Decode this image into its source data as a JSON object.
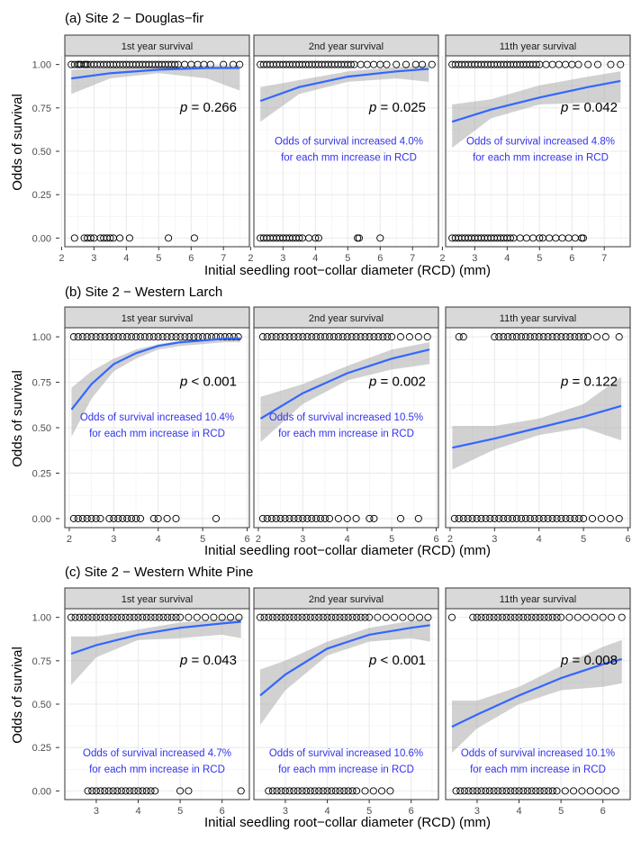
{
  "figure": {
    "ylabel": "Odds of survival",
    "xlabel": "Initial seedling root−collar diameter (RCD) (mm)",
    "y_ticks": [
      "0.00",
      "0.25",
      "0.50",
      "0.75",
      "1.00"
    ]
  },
  "chart_data": [
    {
      "type": "scatter",
      "title": "(a) Site 2 − Douglas−fir",
      "xlabel": "Initial seedling root−collar diameter (RCD) (mm)",
      "ylabel": "Odds of survival",
      "xlim": [
        2.1,
        7.8
      ],
      "ylim": [
        -0.05,
        1.05
      ],
      "x_ticks": [
        2,
        3,
        4,
        5,
        6,
        7
      ],
      "grid": true,
      "panels": [
        {
          "strip": "1st year survival",
          "p_value": "= 0.266",
          "annotation": [],
          "fit_x": [
            2.3,
            3.5,
            5.0,
            6.5,
            7.5
          ],
          "fit_y": [
            0.92,
            0.95,
            0.97,
            0.98,
            0.98
          ],
          "ci_lower": [
            0.83,
            0.92,
            0.95,
            0.92,
            0.85
          ],
          "ci_upper": [
            0.97,
            0.98,
            0.99,
            0.995,
            0.995
          ],
          "points_survived": [
            2.3,
            2.4,
            2.5,
            2.55,
            2.6,
            2.7,
            2.75,
            2.8,
            2.9,
            3.0,
            3.1,
            3.2,
            3.3,
            3.4,
            3.5,
            3.6,
            3.7,
            3.8,
            3.9,
            4.0,
            4.1,
            4.2,
            4.3,
            4.4,
            4.5,
            4.6,
            4.7,
            4.8,
            4.9,
            5.0,
            5.1,
            5.2,
            5.3,
            5.4,
            5.5,
            5.6,
            5.8,
            6.0,
            6.2,
            6.4,
            6.6,
            7.0,
            7.3,
            7.5
          ],
          "points_died": [
            2.4,
            2.7,
            2.8,
            2.9,
            3.0,
            3.2,
            3.3,
            3.4,
            3.5,
            3.6,
            3.8,
            4.1,
            5.3,
            6.1
          ]
        },
        {
          "strip": "2nd year survival",
          "p_value": "= 0.025",
          "annotation": [
            "Odds of survival increased 4.0%",
            "for each mm increase in RCD"
          ],
          "fit_x": [
            2.3,
            3.5,
            5.0,
            6.5,
            7.5
          ],
          "fit_y": [
            0.79,
            0.87,
            0.93,
            0.96,
            0.975
          ],
          "ci_lower": [
            0.67,
            0.83,
            0.9,
            0.92,
            0.9
          ],
          "ci_upper": [
            0.87,
            0.91,
            0.96,
            0.985,
            0.995
          ],
          "points_survived": [
            2.3,
            2.4,
            2.5,
            2.6,
            2.7,
            2.8,
            2.9,
            3.0,
            3.1,
            3.2,
            3.3,
            3.4,
            3.5,
            3.6,
            3.7,
            3.8,
            3.9,
            4.0,
            4.1,
            4.2,
            4.3,
            4.4,
            4.5,
            4.6,
            4.7,
            4.8,
            4.9,
            5.0,
            5.1,
            5.2,
            5.4,
            5.6,
            5.8,
            6.0,
            6.2,
            6.5,
            6.8,
            7.1,
            7.3,
            7.6
          ],
          "points_died": [
            2.3,
            2.4,
            2.5,
            2.6,
            2.7,
            2.8,
            2.9,
            3.0,
            3.1,
            3.2,
            3.3,
            3.4,
            3.5,
            3.6,
            3.8,
            4.0,
            4.1,
            5.3,
            5.35,
            6.0
          ]
        },
        {
          "strip": "11th year survival",
          "p_value": "= 0.042",
          "annotation": [
            "Odds of survival increased 4.8%",
            "for each mm increase in RCD"
          ],
          "fit_x": [
            2.3,
            3.5,
            5.0,
            6.5,
            7.5
          ],
          "fit_y": [
            0.67,
            0.74,
            0.81,
            0.87,
            0.905
          ],
          "ci_lower": [
            0.52,
            0.69,
            0.77,
            0.78,
            0.78
          ],
          "ci_upper": [
            0.77,
            0.8,
            0.88,
            0.93,
            0.96
          ],
          "points_survived": [
            2.3,
            2.4,
            2.5,
            2.6,
            2.7,
            2.8,
            2.9,
            3.0,
            3.1,
            3.2,
            3.3,
            3.4,
            3.5,
            3.6,
            3.7,
            3.8,
            3.9,
            4.0,
            4.1,
            4.2,
            4.3,
            4.4,
            4.5,
            4.6,
            4.7,
            4.8,
            4.9,
            5.0,
            5.2,
            5.4,
            5.6,
            5.8,
            6.0,
            6.2,
            6.5,
            6.8,
            7.2,
            7.5
          ],
          "points_died": [
            2.3,
            2.4,
            2.5,
            2.6,
            2.7,
            2.8,
            2.9,
            3.0,
            3.1,
            3.2,
            3.3,
            3.4,
            3.5,
            3.6,
            3.7,
            3.8,
            3.9,
            4.0,
            4.1,
            4.2,
            4.4,
            4.6,
            4.8,
            5.0,
            5.1,
            5.3,
            5.5,
            5.7,
            5.9,
            6.1,
            6.3,
            6.35
          ]
        }
      ]
    },
    {
      "type": "scatter",
      "title": "(b) Site 2 − Western Larch",
      "xlabel": "Initial seedling root−collar diameter (RCD) (mm)",
      "ylabel": "Odds of survival",
      "xlim": [
        1.9,
        6.05
      ],
      "ylim": [
        -0.05,
        1.05
      ],
      "x_ticks": [
        2,
        3,
        4,
        5,
        6
      ],
      "grid": true,
      "panels": [
        {
          "strip": "1st year survival",
          "p_value": "< 0.001",
          "annotation": [
            "Odds of survival increased 10.4%",
            "for each mm increase in RCD"
          ],
          "fit_x": [
            2.05,
            2.5,
            3.0,
            3.5,
            4.0,
            4.5,
            5.0,
            5.5,
            5.85
          ],
          "fit_y": [
            0.6,
            0.74,
            0.85,
            0.91,
            0.95,
            0.97,
            0.98,
            0.99,
            0.99
          ],
          "ci_lower": [
            0.45,
            0.66,
            0.81,
            0.88,
            0.93,
            0.95,
            0.96,
            0.97,
            0.97
          ],
          "ci_upper": [
            0.72,
            0.81,
            0.88,
            0.93,
            0.96,
            0.98,
            0.99,
            0.995,
            0.998
          ],
          "points_survived": [
            2.1,
            2.2,
            2.3,
            2.4,
            2.5,
            2.6,
            2.7,
            2.8,
            2.9,
            3.0,
            3.1,
            3.2,
            3.3,
            3.4,
            3.5,
            3.6,
            3.7,
            3.8,
            3.9,
            4.0,
            4.1,
            4.2,
            4.3,
            4.4,
            4.5,
            4.6,
            4.7,
            4.8,
            4.9,
            5.0,
            5.1,
            5.2,
            5.3,
            5.4,
            5.5,
            5.6,
            5.7,
            5.8
          ],
          "points_died": [
            2.1,
            2.2,
            2.3,
            2.4,
            2.5,
            2.6,
            2.7,
            2.9,
            3.0,
            3.1,
            3.2,
            3.3,
            3.4,
            3.5,
            3.6,
            3.9,
            4.0,
            4.2,
            4.4,
            5.3
          ]
        },
        {
          "strip": "2nd year survival",
          "p_value": "= 0.002",
          "annotation": [
            "Odds of survival increased 10.5%",
            "for each mm increase in RCD"
          ],
          "fit_x": [
            2.05,
            3.0,
            4.0,
            5.0,
            5.85
          ],
          "fit_y": [
            0.55,
            0.69,
            0.8,
            0.88,
            0.93
          ],
          "ci_lower": [
            0.42,
            0.63,
            0.76,
            0.82,
            0.85
          ],
          "ci_upper": [
            0.67,
            0.74,
            0.84,
            0.93,
            0.97
          ],
          "points_survived": [
            2.1,
            2.2,
            2.3,
            2.4,
            2.5,
            2.6,
            2.7,
            2.8,
            2.9,
            3.0,
            3.1,
            3.2,
            3.3,
            3.4,
            3.5,
            3.6,
            3.7,
            3.8,
            3.9,
            4.0,
            4.1,
            4.2,
            4.3,
            4.4,
            4.5,
            4.6,
            4.7,
            4.8,
            4.9,
            5.0,
            5.2,
            5.4,
            5.6,
            5.8
          ],
          "points_died": [
            2.1,
            2.2,
            2.3,
            2.4,
            2.5,
            2.6,
            2.7,
            2.8,
            2.9,
            3.0,
            3.1,
            3.2,
            3.3,
            3.4,
            3.5,
            3.6,
            3.8,
            4.0,
            4.2,
            4.5,
            4.6,
            5.2,
            5.6
          ]
        },
        {
          "strip": "11th year survival",
          "p_value": "= 0.122",
          "annotation": [],
          "fit_x": [
            2.05,
            3.0,
            4.0,
            5.0,
            5.85
          ],
          "fit_y": [
            0.39,
            0.44,
            0.5,
            0.56,
            0.62
          ],
          "ci_lower": [
            0.27,
            0.38,
            0.46,
            0.5,
            0.43
          ],
          "ci_upper": [
            0.51,
            0.51,
            0.55,
            0.63,
            0.78
          ],
          "points_survived": [
            2.2,
            2.3,
            3.0,
            3.1,
            3.2,
            3.3,
            3.4,
            3.5,
            3.6,
            3.7,
            3.8,
            3.9,
            4.0,
            4.1,
            4.2,
            4.3,
            4.4,
            4.5,
            4.6,
            4.7,
            4.8,
            4.9,
            5.0,
            5.1,
            5.3,
            5.5,
            5.8
          ],
          "points_died": [
            2.1,
            2.2,
            2.3,
            2.4,
            2.5,
            2.6,
            2.7,
            2.8,
            2.9,
            3.0,
            3.1,
            3.2,
            3.3,
            3.4,
            3.5,
            3.6,
            3.7,
            3.8,
            3.9,
            4.0,
            4.1,
            4.2,
            4.3,
            4.4,
            4.5,
            4.6,
            4.7,
            4.8,
            4.9,
            5.0,
            5.2,
            5.4,
            5.6,
            5.8
          ]
        }
      ]
    },
    {
      "type": "scatter",
      "title": "(c) Site 2 − Western White Pine",
      "xlabel": "Initial seedling root−collar diameter (RCD) (mm)",
      "ylabel": "Odds of survival",
      "xlim": [
        2.25,
        6.65
      ],
      "ylim": [
        -0.05,
        1.05
      ],
      "x_ticks": [
        3,
        4,
        5,
        6
      ],
      "grid": true,
      "panels": [
        {
          "strip": "1st year survival",
          "p_value": "= 0.043",
          "annotation": [
            "Odds of survival increased 4.7%",
            "for each mm increase in RCD"
          ],
          "fit_x": [
            2.4,
            3.0,
            4.0,
            5.0,
            6.0,
            6.45
          ],
          "fit_y": [
            0.79,
            0.84,
            0.9,
            0.94,
            0.965,
            0.975
          ],
          "ci_lower": [
            0.61,
            0.77,
            0.87,
            0.88,
            0.9,
            0.88
          ],
          "ci_upper": [
            0.89,
            0.89,
            0.93,
            0.97,
            0.99,
            0.995
          ],
          "points_survived": [
            2.4,
            2.5,
            2.6,
            2.7,
            2.8,
            2.9,
            3.0,
            3.1,
            3.2,
            3.3,
            3.4,
            3.5,
            3.6,
            3.7,
            3.8,
            3.9,
            4.0,
            4.1,
            4.2,
            4.3,
            4.4,
            4.5,
            4.6,
            4.7,
            4.8,
            4.9,
            5.0,
            5.2,
            5.4,
            5.6,
            5.8,
            6.0,
            6.2,
            6.4
          ],
          "points_died": [
            2.8,
            2.9,
            3.0,
            3.1,
            3.2,
            3.3,
            3.4,
            3.5,
            3.6,
            3.7,
            3.8,
            3.9,
            4.0,
            4.1,
            4.2,
            4.3,
            4.4,
            5.0,
            5.2,
            6.45
          ]
        },
        {
          "strip": "2nd year survival",
          "p_value": "< 0.001",
          "annotation": [
            "Odds of survival increased 10.6%",
            "for each mm increase in RCD"
          ],
          "fit_x": [
            2.4,
            3.0,
            4.0,
            5.0,
            6.0,
            6.45
          ],
          "fit_y": [
            0.55,
            0.67,
            0.82,
            0.9,
            0.94,
            0.955
          ],
          "ci_lower": [
            0.38,
            0.58,
            0.78,
            0.86,
            0.88,
            0.86
          ],
          "ci_upper": [
            0.7,
            0.75,
            0.86,
            0.94,
            0.98,
            0.99
          ],
          "points_survived": [
            2.4,
            2.5,
            2.6,
            2.7,
            2.8,
            2.9,
            3.0,
            3.1,
            3.2,
            3.3,
            3.4,
            3.5,
            3.6,
            3.7,
            3.8,
            3.9,
            4.0,
            4.1,
            4.2,
            4.3,
            4.4,
            4.5,
            4.6,
            4.7,
            4.8,
            4.9,
            5.0,
            5.2,
            5.4,
            5.6,
            5.8,
            6.0,
            6.2,
            6.4
          ],
          "points_died": [
            2.6,
            2.7,
            2.8,
            2.9,
            3.0,
            3.1,
            3.2,
            3.3,
            3.4,
            3.5,
            3.6,
            3.7,
            3.8,
            3.9,
            4.0,
            4.1,
            4.2,
            4.3,
            4.4,
            4.5,
            4.6,
            4.7,
            4.9,
            5.1,
            5.3,
            5.5
          ]
        },
        {
          "strip": "11th year survival",
          "p_value": "= 0.008",
          "annotation": [
            "Odds of survival increased 10.1%",
            "for each mm increase in RCD"
          ],
          "fit_x": [
            2.4,
            3.0,
            4.0,
            5.0,
            6.0,
            6.45
          ],
          "fit_y": [
            0.37,
            0.44,
            0.55,
            0.65,
            0.73,
            0.76
          ],
          "ci_lower": [
            0.22,
            0.36,
            0.5,
            0.58,
            0.6,
            0.62
          ],
          "ci_upper": [
            0.52,
            0.52,
            0.6,
            0.72,
            0.83,
            0.87
          ],
          "points_survived": [
            2.4,
            2.9,
            3.0,
            3.1,
            3.2,
            3.3,
            3.4,
            3.5,
            3.6,
            3.7,
            3.8,
            3.9,
            4.0,
            4.1,
            4.2,
            4.3,
            4.4,
            4.5,
            4.6,
            4.7,
            4.8,
            4.9,
            5.0,
            5.2,
            5.4,
            5.6,
            5.8,
            6.0,
            6.2,
            6.45
          ],
          "points_died": [
            2.5,
            2.6,
            2.7,
            2.8,
            2.9,
            3.0,
            3.1,
            3.2,
            3.3,
            3.4,
            3.5,
            3.6,
            3.7,
            3.8,
            3.9,
            4.0,
            4.1,
            4.2,
            4.3,
            4.4,
            4.5,
            4.6,
            4.7,
            4.8,
            4.9,
            5.1,
            5.3,
            5.5,
            5.7,
            5.9,
            6.1,
            6.3
          ]
        }
      ]
    }
  ]
}
